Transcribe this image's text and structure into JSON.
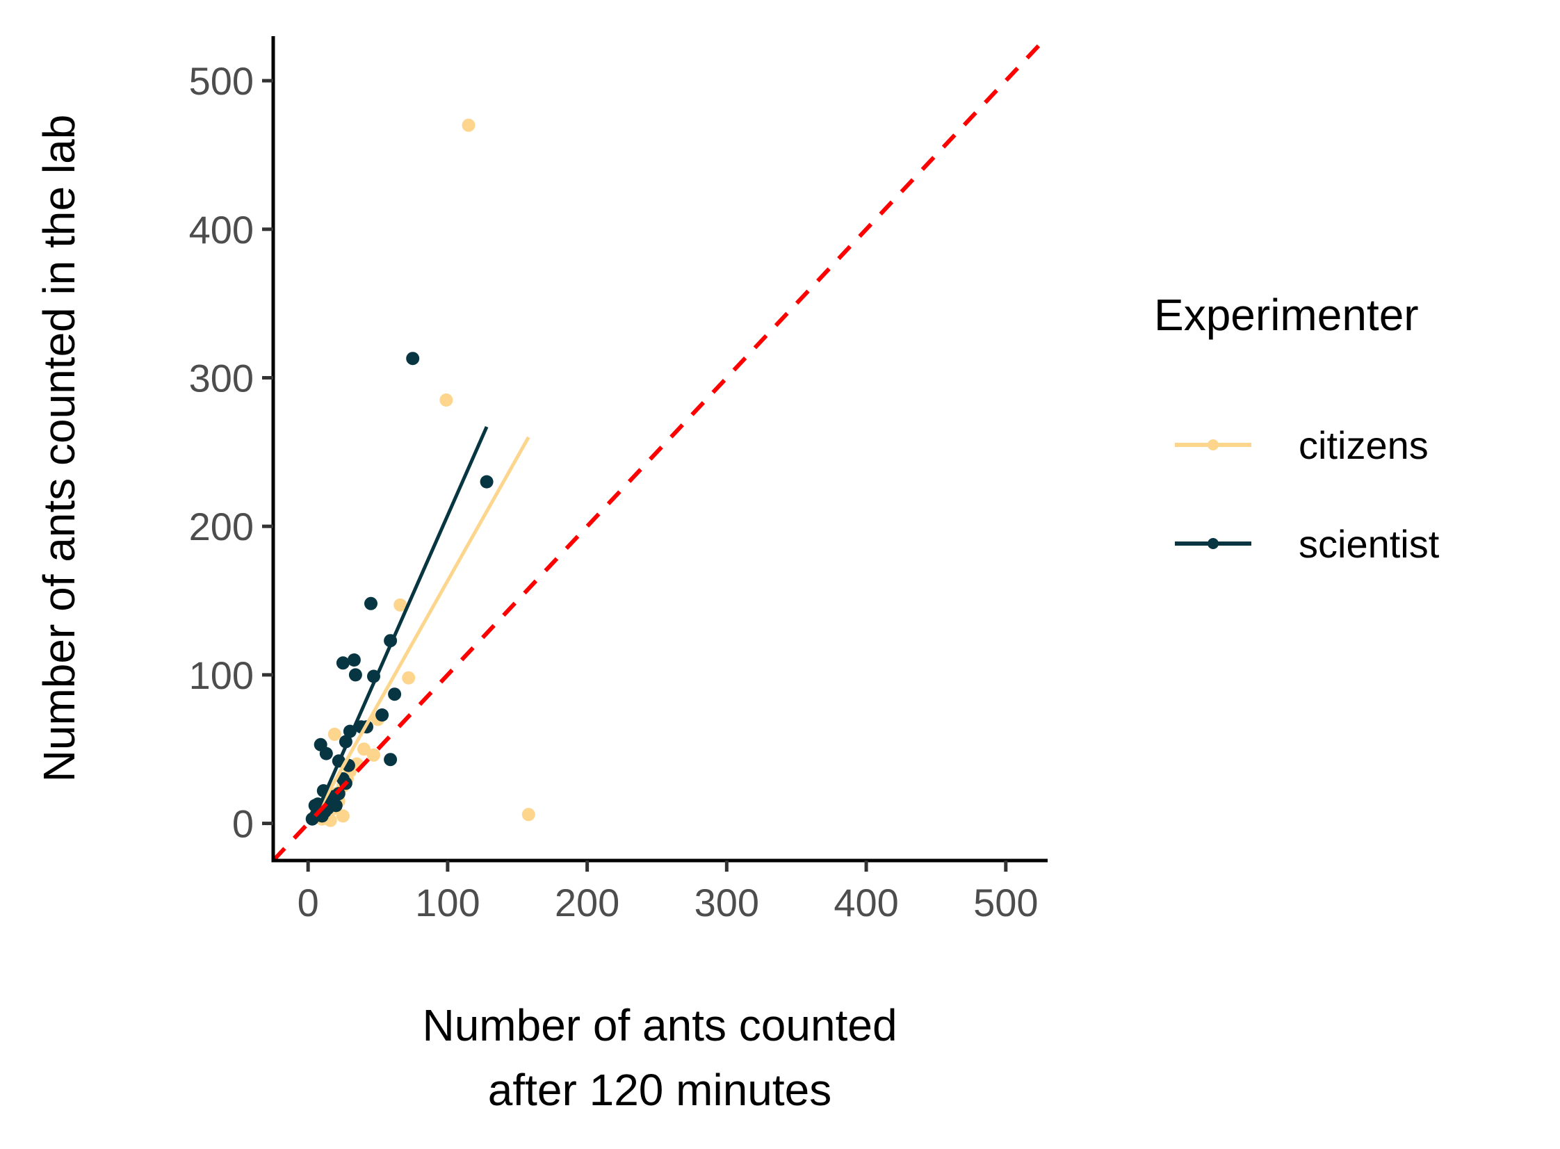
{
  "chart_data": {
    "type": "scatter",
    "xlabel_lines": [
      "Number of ants counted",
      "after 120 minutes"
    ],
    "ylabel": "Number of ants counted in the lab",
    "xlim": [
      -25,
      530
    ],
    "ylim": [
      -25,
      530
    ],
    "xticks": [
      0,
      100,
      200,
      300,
      400,
      500
    ],
    "yticks": [
      0,
      100,
      200,
      300,
      400,
      500
    ],
    "tick_labels": {
      "x": [
        "0",
        "100",
        "200",
        "300",
        "400",
        "500"
      ],
      "y": [
        "0",
        "100",
        "200",
        "300",
        "400",
        "500"
      ]
    },
    "grid": false,
    "legend": {
      "title": "Experimenter",
      "position": "right",
      "entries": [
        "citizens",
        "scientist"
      ]
    },
    "reference_line": {
      "slope": 1,
      "intercept": 0,
      "style": "dashed",
      "color": "#ff0000"
    },
    "series": [
      {
        "name": "citizens",
        "color": "#fdd58c",
        "points": [
          [
            115,
            470
          ],
          [
            99,
            285
          ],
          [
            158,
            6
          ],
          [
            66,
            147
          ],
          [
            72,
            98
          ],
          [
            19,
            60
          ],
          [
            47,
            46
          ],
          [
            50,
            70
          ],
          [
            30,
            35
          ],
          [
            25,
            25
          ],
          [
            20,
            20
          ],
          [
            15,
            15
          ],
          [
            18,
            10
          ],
          [
            25,
            5
          ],
          [
            16,
            2
          ],
          [
            8,
            8
          ],
          [
            5,
            5
          ],
          [
            12,
            12
          ],
          [
            35,
            40
          ],
          [
            40,
            50
          ],
          [
            22,
            15
          ],
          [
            28,
            30
          ],
          [
            10,
            3
          ]
        ],
        "fit": {
          "x": [
            5,
            158
          ],
          "y": [
            5,
            260
          ]
        }
      },
      {
        "name": "scientist",
        "color": "#073642",
        "points": [
          [
            75,
            313
          ],
          [
            128,
            230
          ],
          [
            45,
            148
          ],
          [
            59,
            123
          ],
          [
            25,
            108
          ],
          [
            33,
            110
          ],
          [
            34,
            100
          ],
          [
            47,
            99
          ],
          [
            62,
            87
          ],
          [
            53,
            73
          ],
          [
            30,
            62
          ],
          [
            38,
            65
          ],
          [
            42,
            65
          ],
          [
            27,
            55
          ],
          [
            9,
            53
          ],
          [
            13,
            47
          ],
          [
            59,
            43
          ],
          [
            22,
            42
          ],
          [
            29,
            39
          ],
          [
            27,
            27
          ],
          [
            22,
            20
          ],
          [
            11,
            22
          ],
          [
            20,
            12
          ],
          [
            14,
            10
          ],
          [
            7,
            13
          ],
          [
            16,
            16
          ],
          [
            25,
            30
          ],
          [
            3,
            3
          ],
          [
            6,
            6
          ],
          [
            10,
            5
          ],
          [
            5,
            12
          ],
          [
            18,
            18
          ],
          [
            12,
            8
          ]
        ],
        "fit": {
          "x": [
            5,
            128
          ],
          "y": [
            5,
            267
          ]
        }
      }
    ]
  }
}
